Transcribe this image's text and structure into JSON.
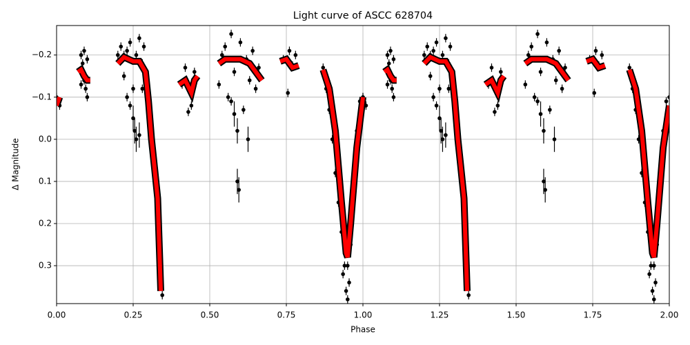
{
  "chart_data": {
    "type": "scatter",
    "title": "Light curve of ASCC 628704",
    "x_label": "Phase",
    "y_label": "Δ Magnitude",
    "xlim": [
      0,
      2
    ],
    "xticks": [
      {
        "value": 0,
        "label": "0.00"
      },
      {
        "value": 0.25,
        "label": "0.25"
      },
      {
        "value": 0.5,
        "label": "0.50"
      },
      {
        "value": 0.75,
        "label": "0.75"
      },
      {
        "value": 1,
        "label": "1.00"
      },
      {
        "value": 1.25,
        "label": "1.25"
      },
      {
        "value": 1.5,
        "label": "1.50"
      },
      {
        "value": 1.75,
        "label": "1.75"
      },
      {
        "value": 2,
        "label": "2.00"
      }
    ],
    "ylim": [
      -0.27,
      0.39
    ],
    "y_inverted": true,
    "yticks": [
      {
        "value": -0.2,
        "label": "−0.2"
      },
      {
        "value": -0.1,
        "label": "−0.1"
      },
      {
        "value": 0,
        "label": "0.0"
      },
      0.1,
      0.2,
      0.3
    ],
    "grid": true,
    "points": {
      "color": "#000000",
      "x": [
        0.0,
        0.01,
        0.08,
        0.085,
        0.09,
        0.09,
        0.095,
        0.1,
        0.08,
        0.1,
        0.2,
        0.21,
        0.22,
        0.23,
        0.24,
        0.25,
        0.26,
        0.27,
        0.28,
        0.29,
        0.23,
        0.24,
        0.25,
        0.26,
        0.27,
        0.28,
        0.3,
        0.31,
        0.32,
        0.33,
        0.34,
        0.345,
        0.255,
        0.285,
        0.22,
        0.42,
        0.43,
        0.44,
        0.43,
        0.45,
        0.41,
        0.53,
        0.54,
        0.55,
        0.56,
        0.57,
        0.58,
        0.59,
        0.59,
        0.595,
        0.6,
        0.61,
        0.62,
        0.625,
        0.63,
        0.64,
        0.65,
        0.66,
        0.58,
        0.57,
        0.74,
        0.76,
        0.77,
        0.78,
        0.755,
        0.87,
        0.88,
        0.89,
        0.9,
        0.91,
        0.92,
        0.93,
        0.94,
        0.945,
        0.95,
        0.955,
        0.96,
        0.965,
        0.97,
        0.98,
        0.99,
        1.0,
        0.935,
        0.95,
        1.0,
        1.01,
        1.08,
        1.085,
        1.09,
        1.09,
        1.095,
        1.1,
        1.08,
        1.1,
        1.2,
        1.21,
        1.22,
        1.23,
        1.24,
        1.25,
        1.26,
        1.27,
        1.28,
        1.29,
        1.23,
        1.24,
        1.25,
        1.26,
        1.27,
        1.28,
        1.3,
        1.31,
        1.32,
        1.33,
        1.34,
        1.345,
        1.255,
        1.285,
        1.22,
        1.42,
        1.43,
        1.44,
        1.43,
        1.45,
        1.41,
        1.53,
        1.54,
        1.55,
        1.56,
        1.57,
        1.58,
        1.59,
        1.59,
        1.595,
        1.6,
        1.61,
        1.62,
        1.625,
        1.63,
        1.64,
        1.65,
        1.66,
        1.58,
        1.57,
        1.74,
        1.76,
        1.77,
        1.78,
        1.755,
        1.87,
        1.88,
        1.89,
        1.9,
        1.91,
        1.92,
        1.93,
        1.94,
        1.945,
        1.95,
        1.955,
        1.96,
        1.965,
        1.97,
        1.98,
        1.99,
        2.0,
        1.935,
        1.95
      ],
      "y": [
        -0.1,
        -0.08,
        -0.2,
        -0.18,
        -0.21,
        -0.14,
        -0.12,
        -0.1,
        -0.13,
        -0.19,
        -0.2,
        -0.22,
        -0.15,
        -0.21,
        -0.23,
        -0.12,
        -0.2,
        -0.24,
        -0.18,
        -0.14,
        -0.1,
        -0.08,
        -0.05,
        0.0,
        -0.01,
        -0.12,
        -0.05,
        0.02,
        0.1,
        0.2,
        0.3,
        0.37,
        -0.02,
        -0.22,
        -0.2,
        -0.17,
        -0.12,
        -0.08,
        -0.065,
        -0.16,
        -0.13,
        -0.13,
        -0.2,
        -0.22,
        -0.1,
        -0.25,
        -0.16,
        -0.02,
        0.1,
        0.12,
        -0.23,
        -0.07,
        -0.19,
        0.0,
        -0.14,
        -0.21,
        -0.12,
        -0.17,
        -0.06,
        -0.09,
        -0.19,
        -0.21,
        -0.175,
        -0.2,
        -0.11,
        -0.17,
        -0.12,
        -0.07,
        0.0,
        0.08,
        0.15,
        0.22,
        0.3,
        0.36,
        0.38,
        0.34,
        0.25,
        0.18,
        0.08,
        -0.02,
        -0.09,
        -0.1,
        0.32,
        0.3,
        -0.1,
        -0.08,
        -0.2,
        -0.18,
        -0.21,
        -0.14,
        -0.12,
        -0.1,
        -0.13,
        -0.19,
        -0.2,
        -0.22,
        -0.15,
        -0.21,
        -0.23,
        -0.12,
        -0.2,
        -0.24,
        -0.18,
        -0.14,
        -0.1,
        -0.08,
        -0.05,
        0.0,
        -0.01,
        -0.12,
        -0.05,
        0.02,
        0.1,
        0.2,
        0.3,
        0.37,
        -0.02,
        -0.22,
        -0.2,
        -0.17,
        -0.12,
        -0.08,
        -0.065,
        -0.16,
        -0.13,
        -0.13,
        -0.2,
        -0.22,
        -0.1,
        -0.25,
        -0.16,
        -0.02,
        0.1,
        0.12,
        -0.23,
        -0.07,
        -0.19,
        0.0,
        -0.14,
        -0.21,
        -0.12,
        -0.17,
        -0.06,
        -0.09,
        -0.19,
        -0.21,
        -0.175,
        -0.2,
        -0.11,
        -0.17,
        -0.12,
        -0.07,
        0.0,
        0.08,
        0.15,
        0.22,
        0.3,
        0.36,
        0.38,
        0.34,
        0.25,
        0.18,
        0.08,
        -0.02,
        -0.09,
        -0.1,
        0.32,
        0.3
      ],
      "errors": [
        0.01,
        0.01,
        0.01,
        0.01,
        0.01,
        0.01,
        0.01,
        0.01,
        0.01,
        0.01,
        0.01,
        0.01,
        0.01,
        0.01,
        0.01,
        0.01,
        0.01,
        0.01,
        0.01,
        0.01,
        0.01,
        0.01,
        0.03,
        0.03,
        0.03,
        0.01,
        0.01,
        0.01,
        0.01,
        0.01,
        0.01,
        0.01,
        0.03,
        0.01,
        0.01,
        0.01,
        0.01,
        0.01,
        0.01,
        0.01,
        0.01,
        0.01,
        0.01,
        0.01,
        0.01,
        0.01,
        0.01,
        0.03,
        0.03,
        0.03,
        0.01,
        0.01,
        0.01,
        0.03,
        0.01,
        0.01,
        0.01,
        0.01,
        0.03,
        0.01,
        0.01,
        0.01,
        0.01,
        0.01,
        0.01,
        0.01,
        0.01,
        0.01,
        0.01,
        0.01,
        0.01,
        0.01,
        0.01,
        0.01,
        0.01,
        0.01,
        0.01,
        0.01,
        0.01,
        0.01,
        0.01,
        0.01,
        0.01,
        0.01,
        0.01,
        0.01,
        0.01,
        0.01,
        0.01,
        0.01,
        0.01,
        0.01,
        0.01,
        0.01,
        0.01,
        0.01,
        0.01,
        0.01,
        0.01,
        0.01,
        0.01,
        0.01,
        0.01,
        0.01,
        0.01,
        0.01,
        0.03,
        0.03,
        0.03,
        0.01,
        0.01,
        0.01,
        0.01,
        0.01,
        0.01,
        0.01,
        0.03,
        0.01,
        0.01,
        0.01,
        0.01,
        0.01,
        0.01,
        0.01,
        0.01,
        0.01,
        0.01,
        0.01,
        0.01,
        0.01,
        0.01,
        0.03,
        0.03,
        0.03,
        0.01,
        0.01,
        0.01,
        0.03,
        0.01,
        0.01,
        0.01,
        0.01,
        0.03,
        0.01,
        0.01,
        0.01,
        0.01,
        0.01,
        0.01,
        0.01,
        0.01,
        0.01,
        0.01,
        0.01,
        0.01,
        0.01,
        0.01,
        0.01,
        0.01,
        0.01,
        0.01,
        0.01,
        0.01,
        0.01,
        0.01,
        0.01,
        0.01,
        0.01
      ]
    },
    "model": {
      "color": "#ff0000",
      "edge_color": "#000000",
      "x": [
        0,
        0.01,
        null,
        0.07,
        0.08,
        0.09,
        0.1,
        0.11,
        null,
        0.2,
        0.22,
        0.25,
        0.27,
        0.29,
        0.3,
        0.31,
        0.32,
        0.33,
        0.34,
        null,
        0.4,
        0.42,
        0.44,
        0.45,
        0.46,
        null,
        0.53,
        0.55,
        0.6,
        0.63,
        0.65,
        0.67,
        null,
        0.73,
        0.75,
        0.77,
        0.79,
        null,
        0.87,
        0.89,
        0.91,
        0.93,
        0.945,
        0.95,
        0.96,
        0.98,
        1.0,
        null,
        1.07,
        1.08,
        1.09,
        1.1,
        1.11,
        null,
        1.2,
        1.22,
        1.25,
        1.27,
        1.29,
        1.3,
        1.31,
        1.32,
        1.33,
        1.34,
        null,
        1.4,
        1.42,
        1.44,
        1.45,
        1.46,
        null,
        1.53,
        1.55,
        1.6,
        1.63,
        1.65,
        1.67,
        null,
        1.73,
        1.75,
        1.77,
        1.79,
        null,
        1.87,
        1.89,
        1.91,
        1.93,
        1.945,
        1.95,
        1.96,
        1.98,
        2.0
      ],
      "y": [
        -0.08,
        -0.1,
        null,
        -0.16,
        -0.165,
        -0.15,
        -0.14,
        -0.14,
        null,
        -0.18,
        -0.195,
        -0.185,
        -0.185,
        -0.16,
        -0.09,
        0.0,
        0.07,
        0.14,
        0.36,
        null,
        -0.13,
        -0.14,
        -0.11,
        -0.14,
        -0.15,
        null,
        -0.18,
        -0.19,
        -0.19,
        -0.18,
        -0.16,
        -0.14,
        null,
        -0.185,
        -0.19,
        -0.17,
        -0.175,
        null,
        -0.165,
        -0.12,
        -0.02,
        0.15,
        0.27,
        0.28,
        0.2,
        0.02,
        -0.1,
        null,
        -0.16,
        -0.165,
        -0.15,
        -0.14,
        -0.14,
        null,
        -0.18,
        -0.195,
        -0.185,
        -0.185,
        -0.16,
        -0.09,
        0.0,
        0.07,
        0.14,
        0.36,
        null,
        -0.13,
        -0.14,
        -0.11,
        -0.14,
        -0.15,
        null,
        -0.18,
        -0.19,
        -0.19,
        -0.18,
        -0.16,
        -0.14,
        null,
        -0.185,
        -0.19,
        -0.17,
        -0.175,
        null,
        -0.165,
        -0.12,
        -0.02,
        0.15,
        0.27,
        0.28,
        0.2,
        0.02,
        -0.08
      ]
    }
  }
}
